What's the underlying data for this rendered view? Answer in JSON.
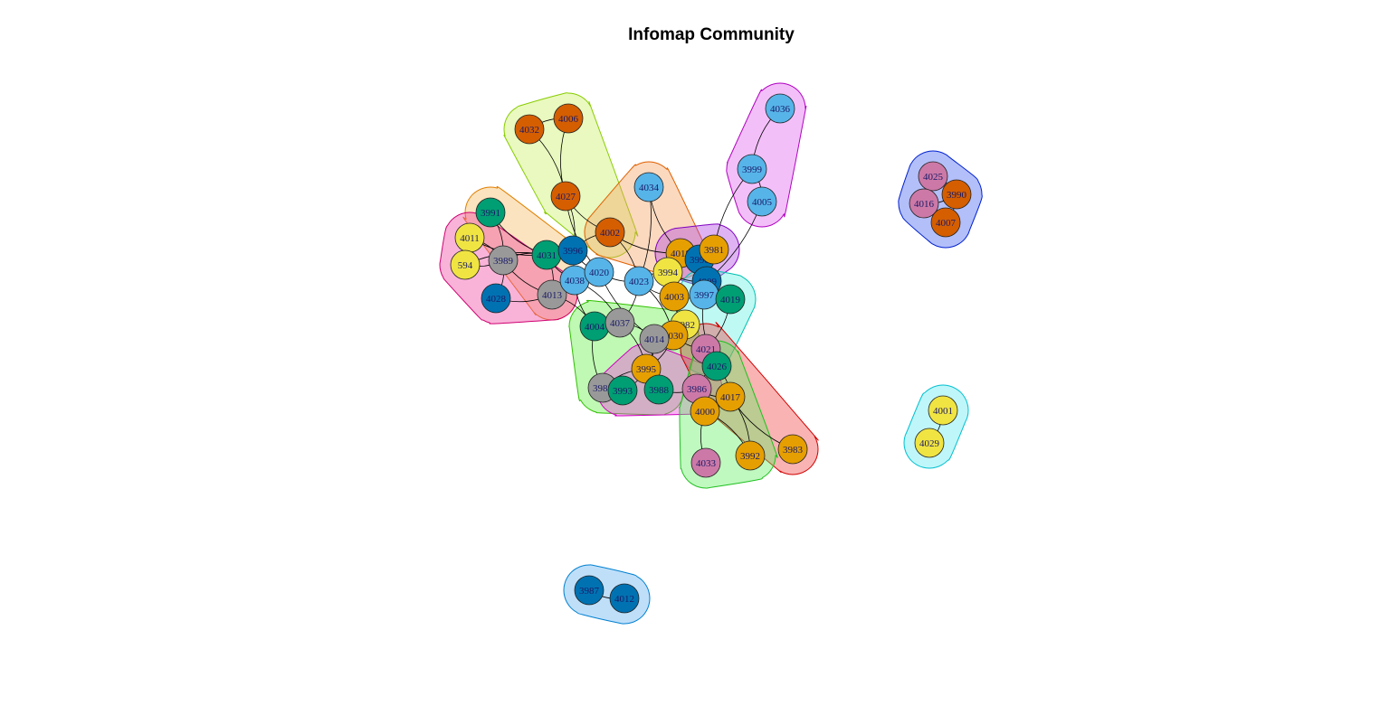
{
  "title": "Infomap Community",
  "colors": {
    "orange": "#E69F00",
    "skyblue": "#56B4E9",
    "green": "#009E73",
    "yellow": "#F0E442",
    "blue": "#0072B2",
    "vermillion": "#D55E00",
    "purple": "#CC79A7",
    "gray": "#999999"
  },
  "nodes": [
    {
      "id": "4032",
      "color": "vermillion"
    },
    {
      "id": "4006",
      "color": "vermillion"
    },
    {
      "id": "4036",
      "color": "skyblue"
    },
    {
      "id": "3999",
      "color": "skyblue"
    },
    {
      "id": "4005",
      "color": "skyblue"
    },
    {
      "id": "4034",
      "color": "skyblue"
    },
    {
      "id": "4027",
      "color": "vermillion"
    },
    {
      "id": "3991",
      "color": "green"
    },
    {
      "id": "4002",
      "color": "vermillion"
    },
    {
      "id": "4011",
      "color": "yellow"
    },
    {
      "id": "594",
      "color": "yellow"
    },
    {
      "id": "3989",
      "color": "gray"
    },
    {
      "id": "4031",
      "color": "green"
    },
    {
      "id": "3996",
      "color": "blue"
    },
    {
      "id": "4028",
      "color": "blue"
    },
    {
      "id": "4013",
      "color": "gray"
    },
    {
      "id": "4038",
      "color": "skyblue"
    },
    {
      "id": "4020",
      "color": "skyblue"
    },
    {
      "id": "4023",
      "color": "skyblue"
    },
    {
      "id": "4018",
      "color": "orange"
    },
    {
      "id": "3998",
      "color": "blue"
    },
    {
      "id": "3981",
      "color": "orange"
    },
    {
      "id": "3994",
      "color": "yellow"
    },
    {
      "id": "4009",
      "color": "blue"
    },
    {
      "id": "3997",
      "color": "skyblue"
    },
    {
      "id": "4003",
      "color": "orange"
    },
    {
      "id": "4019",
      "color": "green"
    },
    {
      "id": "4004",
      "color": "green"
    },
    {
      "id": "4037",
      "color": "gray"
    },
    {
      "id": "3982",
      "color": "yellow"
    },
    {
      "id": "4030",
      "color": "orange"
    },
    {
      "id": "4014",
      "color": "gray"
    },
    {
      "id": "4021",
      "color": "purple"
    },
    {
      "id": "3995",
      "color": "orange"
    },
    {
      "id": "4026",
      "color": "green"
    },
    {
      "id": "3985",
      "color": "gray"
    },
    {
      "id": "3993",
      "color": "green"
    },
    {
      "id": "3988",
      "color": "green"
    },
    {
      "id": "3986",
      "color": "purple"
    },
    {
      "id": "4017",
      "color": "orange"
    },
    {
      "id": "4000",
      "color": "orange"
    },
    {
      "id": "3983",
      "color": "orange"
    },
    {
      "id": "3992",
      "color": "orange"
    },
    {
      "id": "4033",
      "color": "purple"
    },
    {
      "id": "4025",
      "color": "purple"
    },
    {
      "id": "3990",
      "color": "vermillion"
    },
    {
      "id": "4016",
      "color": "purple"
    },
    {
      "id": "4007",
      "color": "vermillion"
    },
    {
      "id": "4001",
      "color": "yellow"
    },
    {
      "id": "4029",
      "color": "yellow"
    },
    {
      "id": "3987",
      "color": "blue"
    },
    {
      "id": "4012",
      "color": "blue"
    }
  ],
  "communities": [
    {
      "members": [
        "4032",
        "4006",
        "4027",
        "4002"
      ],
      "fill": "#C8F060",
      "stroke": "#88CC00"
    },
    {
      "members": [
        "4036",
        "3999",
        "4005"
      ],
      "fill": "#E060F0",
      "stroke": "#B000C0"
    },
    {
      "members": [
        "4034",
        "4002",
        "4018"
      ],
      "fill": "#F5A060",
      "stroke": "#E06000"
    },
    {
      "members": [
        "3991",
        "4031",
        "4013"
      ],
      "fill": "#F5B860",
      "stroke": "#E08000"
    },
    {
      "members": [
        "4011",
        "594",
        "3989",
        "4028",
        "4013"
      ],
      "fill": "#F040A0",
      "stroke": "#D00070"
    },
    {
      "members": [
        "4018",
        "3981",
        "3998"
      ],
      "fill": "#B040E0",
      "stroke": "#8000C0"
    },
    {
      "members": [
        "4019",
        "3997",
        "4021"
      ],
      "fill": "#60F0E0",
      "stroke": "#00C0B0"
    },
    {
      "members": [
        "4004",
        "3985",
        "3988",
        "4030"
      ],
      "fill": "#60F040",
      "stroke": "#30C000"
    },
    {
      "members": [
        "3995",
        "3986",
        "3993"
      ],
      "fill": "#F040E0",
      "stroke": "#D000C0"
    },
    {
      "members": [
        "4021",
        "3983",
        "4017"
      ],
      "fill": "#F04040",
      "stroke": "#D00000"
    },
    {
      "members": [
        "4000",
        "4033",
        "3992",
        "4026"
      ],
      "fill": "#60F060",
      "stroke": "#20C020"
    },
    {
      "members": [
        "4025",
        "3990",
        "4016",
        "4007"
      ],
      "fill": "#4060F0",
      "stroke": "#0020D0"
    },
    {
      "members": [
        "4001",
        "4029"
      ],
      "fill": "#60E8F0",
      "stroke": "#00C0D0"
    },
    {
      "members": [
        "3987",
        "4012"
      ],
      "fill": "#60B0F0",
      "stroke": "#0080D0"
    }
  ],
  "edges": [
    [
      "4032",
      "4027"
    ],
    [
      "4006",
      "4027"
    ],
    [
      "4032",
      "4006"
    ],
    [
      "4036",
      "3999"
    ],
    [
      "3999",
      "4005"
    ],
    [
      "3999",
      "3981"
    ],
    [
      "4005",
      "4009"
    ],
    [
      "4027",
      "4002"
    ],
    [
      "4027",
      "3996"
    ],
    [
      "4027",
      "4020"
    ],
    [
      "4034",
      "4023"
    ],
    [
      "4034",
      "4018"
    ],
    [
      "3991",
      "3989"
    ],
    [
      "3991",
      "4031"
    ],
    [
      "4011",
      "3989"
    ],
    [
      "594",
      "3989"
    ],
    [
      "3989",
      "4028"
    ],
    [
      "3989",
      "4013"
    ],
    [
      "3989",
      "4031"
    ],
    [
      "4011",
      "4031"
    ],
    [
      "594",
      "4031"
    ],
    [
      "4028",
      "4013"
    ],
    [
      "4031",
      "3996"
    ],
    [
      "4031",
      "4038"
    ],
    [
      "4031",
      "4013"
    ],
    [
      "3996",
      "4020"
    ],
    [
      "3996",
      "4002"
    ],
    [
      "4038",
      "4020"
    ],
    [
      "4038",
      "4013"
    ],
    [
      "4020",
      "4023"
    ],
    [
      "4013",
      "4004"
    ],
    [
      "4038",
      "4004"
    ],
    [
      "4002",
      "4023"
    ],
    [
      "4002",
      "4018"
    ],
    [
      "4023",
      "3994"
    ],
    [
      "4023",
      "4003"
    ],
    [
      "4023",
      "4037"
    ],
    [
      "4018",
      "3981"
    ],
    [
      "4018",
      "3998"
    ],
    [
      "3981",
      "3998"
    ],
    [
      "3998",
      "4009"
    ],
    [
      "3994",
      "4009"
    ],
    [
      "4009",
      "3997"
    ],
    [
      "4009",
      "4019"
    ],
    [
      "3997",
      "4003"
    ],
    [
      "4003",
      "3982"
    ],
    [
      "4003",
      "4030"
    ],
    [
      "4004",
      "4037"
    ],
    [
      "4037",
      "4014"
    ],
    [
      "4014",
      "4030"
    ],
    [
      "3982",
      "4030"
    ],
    [
      "4030",
      "4021"
    ],
    [
      "4014",
      "3995"
    ],
    [
      "3995",
      "3985"
    ],
    [
      "3995",
      "3993"
    ],
    [
      "3995",
      "3988"
    ],
    [
      "3985",
      "3993"
    ],
    [
      "3988",
      "3986"
    ],
    [
      "3986",
      "4026"
    ],
    [
      "4021",
      "4026"
    ],
    [
      "4026",
      "4017"
    ],
    [
      "3986",
      "4017"
    ],
    [
      "4017",
      "4000"
    ],
    [
      "4000",
      "4033"
    ],
    [
      "4000",
      "3992"
    ],
    [
      "4017",
      "3983"
    ],
    [
      "4017",
      "3992"
    ],
    [
      "4020",
      "4014"
    ],
    [
      "4023",
      "4030"
    ],
    [
      "3994",
      "3982"
    ],
    [
      "4037",
      "3995"
    ],
    [
      "4004",
      "3985"
    ],
    [
      "4019",
      "4021"
    ],
    [
      "3997",
      "4026"
    ],
    [
      "4030",
      "3995"
    ],
    [
      "4014",
      "3988"
    ],
    [
      "4038",
      "4037"
    ],
    [
      "4025",
      "4016"
    ],
    [
      "4025",
      "3990"
    ],
    [
      "4016",
      "4007"
    ],
    [
      "3990",
      "4007"
    ],
    [
      "4016",
      "3990"
    ],
    [
      "4001",
      "4029"
    ],
    [
      "3987",
      "4012"
    ]
  ]
}
